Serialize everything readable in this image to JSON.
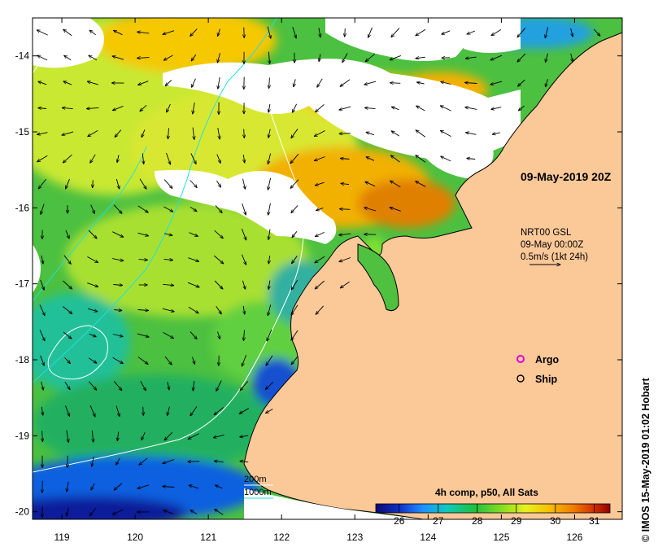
{
  "map": {
    "timestamp": "09-May-2019 20Z",
    "vectors": {
      "product": "NRT00 GSL",
      "date": "09-May 00:00Z",
      "scale": "0.5m/s (1kt 24h)"
    },
    "legend": {
      "argo": "Argo",
      "ship": "Ship",
      "argo_color": "#e000e0"
    },
    "isobaths": {
      "shallow": "200m",
      "deep": "1000m",
      "shallow_color": "#ffffff",
      "deep_color": "#20e0e0"
    },
    "colorbar": {
      "title": "4h comp, p50, All Sats",
      "ticks": [
        "26",
        "27",
        "28",
        "29",
        "30",
        "31"
      ],
      "min": 25.4,
      "max": 31.4
    },
    "credit": "© IMOS 15-May-2019 01:02 Hobart",
    "axes": {
      "lon_ticks": [
        "119",
        "120",
        "121",
        "122",
        "123",
        "124",
        "125",
        "126"
      ],
      "lat_ticks": [
        "-14",
        "-15",
        "-16",
        "-17",
        "-18",
        "-19",
        "-20"
      ],
      "lon_values": [
        119,
        120,
        121,
        122,
        123,
        124,
        125,
        126
      ],
      "lat_values": [
        -14,
        -15,
        -16,
        -17,
        -18,
        -19,
        -20
      ],
      "lon_range": [
        118.6,
        126.65
      ],
      "lat_range": [
        -20.1,
        -13.5
      ]
    },
    "colors": {
      "land": "#fbc898",
      "cloud": "#ffffff",
      "coast": "#000000"
    }
  }
}
